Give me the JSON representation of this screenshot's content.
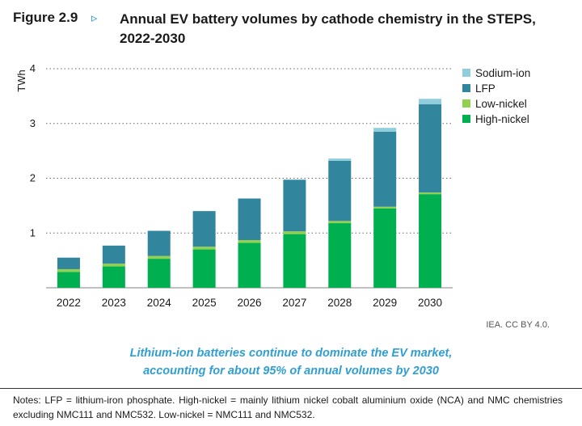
{
  "header": {
    "figure_label": "Figure 2.9",
    "arrow_glyph": "▹",
    "title": "Annual EV battery volumes by cathode chemistry in the STEPS, 2022-2030"
  },
  "colors": {
    "high_nickel": "#00b050",
    "low_nickel": "#92d050",
    "lfp": "#31859c",
    "sodium_ion": "#92cddc",
    "grid": "#666666",
    "axis_text": "#1a1a1a"
  },
  "chart_data": {
    "type": "bar",
    "stacked": true,
    "title": "Annual EV battery volumes by cathode chemistry in the STEPS, 2022-2030",
    "xlabel": "",
    "ylabel": "TWh",
    "ylim": [
      0,
      4
    ],
    "yticks": [
      1,
      2,
      3,
      4
    ],
    "categories": [
      "2022",
      "2023",
      "2024",
      "2025",
      "2026",
      "2027",
      "2028",
      "2029",
      "2030"
    ],
    "legend_position": "top-right",
    "series": [
      {
        "name": "High-nickel",
        "color_key": "high_nickel",
        "values": [
          0.29,
          0.39,
          0.53,
          0.7,
          0.82,
          0.98,
          1.18,
          1.45,
          1.71
        ]
      },
      {
        "name": "Low-nickel",
        "color_key": "low_nickel",
        "values": [
          0.05,
          0.05,
          0.05,
          0.05,
          0.05,
          0.05,
          0.04,
          0.03,
          0.03
        ]
      },
      {
        "name": "LFP",
        "color_key": "lfp",
        "values": [
          0.21,
          0.33,
          0.46,
          0.65,
          0.76,
          0.94,
          1.1,
          1.37,
          1.61
        ]
      },
      {
        "name": "Sodium-ion",
        "color_key": "sodium_ion",
        "values": [
          0,
          0,
          0,
          0,
          0,
          0.01,
          0.04,
          0.07,
          0.1
        ]
      }
    ],
    "legend_order": [
      "Sodium-ion",
      "LFP",
      "Low-nickel",
      "High-nickel"
    ]
  },
  "credit": "IEA. CC BY 4.0.",
  "subtitle": {
    "line1": "Lithium-ion batteries continue to dominate the EV market,",
    "line2": "accounting for about 95% of annual volumes by 2030"
  },
  "notes": "Notes: LFP = lithium-iron phosphate. High-nickel = mainly lithium nickel cobalt aluminium oxide (NCA) and NMC chemistries excluding NMC111 and NMC532. Low-nickel = NMC111 and NMC532."
}
